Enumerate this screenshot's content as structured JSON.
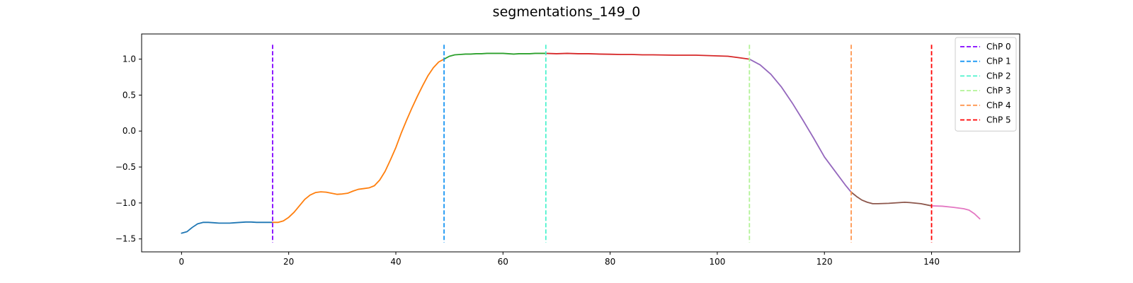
{
  "chart_data": {
    "type": "line",
    "title": "segmentations_149_0",
    "xlabel": "",
    "ylabel": "",
    "xlim": [
      -7.45,
      156.45
    ],
    "ylim": [
      -1.68,
      1.35
    ],
    "xticks": [
      0,
      20,
      40,
      60,
      80,
      100,
      120,
      140
    ],
    "yticks": [
      1.0,
      0.5,
      0.0,
      -0.5,
      -1.0,
      -1.5
    ],
    "ytick_labels": [
      "1.0",
      "0.5",
      "0.0",
      "−0.5",
      "−1.0",
      "−1.5"
    ],
    "grid": false,
    "legend_position": "top-right",
    "segments": [
      {
        "color": "#1f77b4",
        "x": [
          0,
          1,
          2,
          3,
          4,
          5,
          6,
          7,
          8,
          9,
          10,
          11,
          12,
          13,
          14,
          15,
          16,
          17
        ],
        "y": [
          -1.42,
          -1.4,
          -1.34,
          -1.29,
          -1.27,
          -1.27,
          -1.275,
          -1.28,
          -1.28,
          -1.28,
          -1.275,
          -1.27,
          -1.265,
          -1.265,
          -1.27,
          -1.27,
          -1.27,
          -1.27
        ]
      },
      {
        "color": "#ff7f0e",
        "x": [
          17,
          18,
          19,
          20,
          21,
          22,
          23,
          24,
          25,
          26,
          27,
          28,
          29,
          30,
          31,
          32,
          33,
          34,
          35,
          36,
          37,
          38,
          39,
          40,
          41,
          42,
          43,
          44,
          45,
          46,
          47,
          48,
          49
        ],
        "y": [
          -1.27,
          -1.27,
          -1.25,
          -1.2,
          -1.13,
          -1.04,
          -0.95,
          -0.89,
          -0.855,
          -0.845,
          -0.85,
          -0.865,
          -0.88,
          -0.875,
          -0.865,
          -0.835,
          -0.81,
          -0.8,
          -0.79,
          -0.76,
          -0.68,
          -0.56,
          -0.4,
          -0.23,
          -0.03,
          0.15,
          0.32,
          0.48,
          0.63,
          0.77,
          0.88,
          0.96,
          1.0
        ]
      },
      {
        "color": "#2ca02c",
        "x": [
          49,
          50,
          51,
          52,
          53,
          54,
          55,
          56,
          57,
          58,
          59,
          60,
          61,
          62,
          63,
          64,
          65,
          66,
          67,
          68
        ],
        "y": [
          1.0,
          1.04,
          1.06,
          1.065,
          1.07,
          1.07,
          1.075,
          1.075,
          1.08,
          1.08,
          1.08,
          1.08,
          1.075,
          1.07,
          1.075,
          1.075,
          1.075,
          1.08,
          1.08,
          1.08
        ]
      },
      {
        "color": "#d62728",
        "x": [
          68,
          70,
          72,
          74,
          76,
          78,
          80,
          82,
          84,
          86,
          88,
          90,
          92,
          94,
          96,
          98,
          100,
          102,
          104,
          106
        ],
        "y": [
          1.08,
          1.075,
          1.08,
          1.075,
          1.075,
          1.07,
          1.068,
          1.065,
          1.065,
          1.06,
          1.06,
          1.057,
          1.055,
          1.055,
          1.055,
          1.05,
          1.045,
          1.04,
          1.02,
          1.0
        ]
      },
      {
        "color": "#9467bd",
        "x": [
          106,
          108,
          110,
          112,
          114,
          116,
          118,
          120,
          122,
          124,
          125
        ],
        "y": [
          1.0,
          0.92,
          0.79,
          0.61,
          0.39,
          0.15,
          -0.1,
          -0.36,
          -0.56,
          -0.76,
          -0.85
        ]
      },
      {
        "color": "#8c564b",
        "x": [
          125,
          126,
          127,
          128,
          129,
          130,
          132,
          134,
          135,
          136,
          138,
          140
        ],
        "y": [
          -0.85,
          -0.91,
          -0.96,
          -0.99,
          -1.01,
          -1.01,
          -1.005,
          -0.995,
          -0.99,
          -0.995,
          -1.01,
          -1.04
        ]
      },
      {
        "color": "#e377c2",
        "x": [
          140,
          142,
          144,
          146,
          147,
          148,
          149
        ],
        "y": [
          -1.04,
          -1.045,
          -1.06,
          -1.08,
          -1.1,
          -1.15,
          -1.22
        ]
      }
    ],
    "changepoints": [
      {
        "name": "ChP 0",
        "x": 17,
        "color": "#8000ff"
      },
      {
        "name": "ChP 1",
        "x": 49,
        "color": "#1996f3"
      },
      {
        "name": "ChP 2",
        "x": 68,
        "color": "#4df3ce"
      },
      {
        "name": "ChP 3",
        "x": 106,
        "color": "#b2f396"
      },
      {
        "name": "ChP 4",
        "x": 125,
        "color": "#ff964f"
      },
      {
        "name": "ChP 5",
        "x": 140,
        "color": "#ff0000"
      }
    ],
    "vline_range": [
      -1.55,
      1.2
    ]
  }
}
